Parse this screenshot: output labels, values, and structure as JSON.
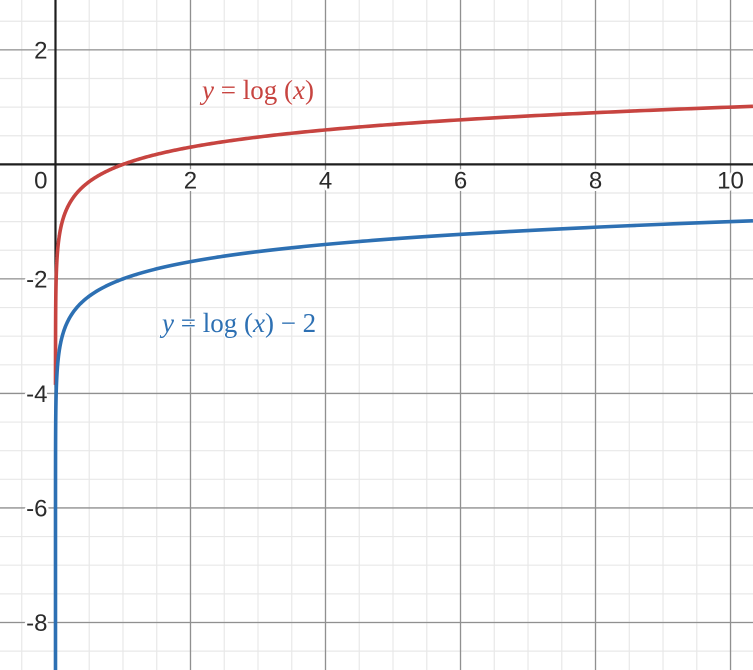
{
  "canvas": {
    "background": "#ffffff"
  },
  "style": {
    "axis_color": "#1e1e1e",
    "axis_width": 2.2,
    "major_grid_color": "#909090",
    "major_grid_width": 1.3,
    "minor_grid_color": "#e8e8e8",
    "minor_grid_width": 1.2,
    "tick_label_color": "#2b2b2b",
    "tick_halo_color": "#ffffff",
    "curve_stroke_width": 3.6
  },
  "chart_data": {
    "type": "line",
    "title": "",
    "xlabel": "",
    "ylabel": "",
    "legend_position": "none",
    "axes": {
      "xlim": [
        -0.822,
        10.333
      ],
      "ylim": [
        -8.83,
        2.871
      ],
      "x_major_step": 2,
      "x_minor_step": 0.5,
      "y_major_step": 2,
      "y_minor_step": 0.5,
      "grid": true,
      "x_ticks": [
        {
          "value": 0,
          "label": "0"
        },
        {
          "value": 2,
          "label": "2"
        },
        {
          "value": 4,
          "label": "4"
        },
        {
          "value": 6,
          "label": "6"
        },
        {
          "value": 8,
          "label": "8"
        },
        {
          "value": 10,
          "label": "10"
        }
      ],
      "y_ticks": [
        {
          "value": 2,
          "label": "2"
        },
        {
          "value": -2,
          "label": "-2"
        },
        {
          "value": -4,
          "label": "-4"
        },
        {
          "value": -6,
          "label": "-6"
        },
        {
          "value": -8,
          "label": "-8"
        }
      ]
    },
    "series": [
      {
        "slug": "curve-log-x",
        "name": "y = log (x)",
        "expression": "y = log10(x)",
        "color": "#c74440",
        "y_offset": 0,
        "log_x_min": -3.85,
        "log_x_max": 1.0142,
        "sample_points": [
          {
            "x": 0.1,
            "y": -1
          },
          {
            "x": 0.5,
            "y": -0.301
          },
          {
            "x": 1,
            "y": 0
          },
          {
            "x": 2,
            "y": 0.301
          },
          {
            "x": 4,
            "y": 0.602
          },
          {
            "x": 6,
            "y": 0.778
          },
          {
            "x": 8,
            "y": 0.903
          },
          {
            "x": 10,
            "y": 1
          }
        ]
      },
      {
        "slug": "curve-log-x-minus-2",
        "name": "y = log (x) − 2",
        "expression": "y = log10(x) − 2",
        "color": "#2d70b3",
        "y_offset": -2,
        "log_x_min": -6.9,
        "log_x_max": 1.0142,
        "sample_points": [
          {
            "x": 0.1,
            "y": -3
          },
          {
            "x": 0.5,
            "y": -2.301
          },
          {
            "x": 1,
            "y": -2
          },
          {
            "x": 2,
            "y": -1.699
          },
          {
            "x": 4,
            "y": -1.398
          },
          {
            "x": 6,
            "y": -1.222
          },
          {
            "x": 8,
            "y": -1.097
          },
          {
            "x": 10,
            "y": -1
          }
        ]
      }
    ],
    "annotations": [
      {
        "slug": "label-log-x",
        "text": "y = log (x)",
        "color": "#c74440",
        "x": 3.0,
        "y": 1.285,
        "parts": [
          {
            "text": "y",
            "italic": true
          },
          {
            "text": " = log (",
            "italic": false
          },
          {
            "text": "x",
            "italic": true
          },
          {
            "text": ")",
            "italic": false
          }
        ]
      },
      {
        "slug": "label-log-x-minus-2",
        "text": "y = log (x) − 2",
        "color": "#2d70b3",
        "x": 2.72,
        "y": -2.78,
        "parts": [
          {
            "text": "y",
            "italic": true
          },
          {
            "text": " = log (",
            "italic": false
          },
          {
            "text": "x",
            "italic": true
          },
          {
            "text": ") − 2",
            "italic": false
          }
        ]
      }
    ]
  }
}
